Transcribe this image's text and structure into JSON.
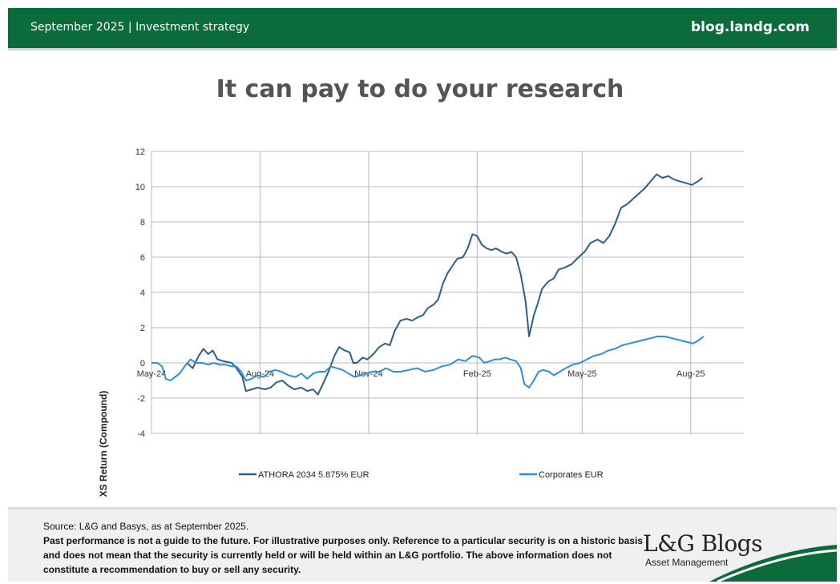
{
  "header": {
    "left_text": "September 2025 | Investment strategy",
    "right_text": "blog.landg.com",
    "color": "#0b6b3a"
  },
  "title": "It can pay to do your research",
  "footer": {
    "source": "Source: L&G and Basys, as at September 2025.",
    "disclaimer": "Past performance is not a guide to the future. For illustrative purposes only. Reference to a particular security is on a historic basis and does not mean that the security is currently held or will be held within an L&G portfolio. The above information does not constitute a recommendation to buy or sell any security.",
    "brand": "L&G Blogs",
    "brand_sub": "Asset Management"
  },
  "chart_data": {
    "type": "line",
    "title": "",
    "xlabel": "",
    "ylabel": "XS Return (Compound)",
    "ylim": [
      -4,
      12
    ],
    "yticks": [
      -4,
      -2,
      0,
      2,
      4,
      6,
      8,
      10,
      12
    ],
    "xlim": [
      "2024-05-01",
      "2025-09-15"
    ],
    "xticks": [
      {
        "date": "2024-05-01",
        "label": "May-24"
      },
      {
        "date": "2024-08-01",
        "label": "Aug-24"
      },
      {
        "date": "2024-11-01",
        "label": "Nov-24"
      },
      {
        "date": "2025-02-01",
        "label": "Feb-25"
      },
      {
        "date": "2025-05-01",
        "label": "May-25"
      },
      {
        "date": "2025-08-01",
        "label": "Aug-25"
      }
    ],
    "grid": true,
    "legend_position": "bottom",
    "series": [
      {
        "name": "ATHORA 2034 5.875%  EUR",
        "color": "#2e5f86",
        "points": [
          [
            "2024-05-31",
            0.0
          ],
          [
            "2024-06-05",
            -0.3
          ],
          [
            "2024-06-10",
            0.4
          ],
          [
            "2024-06-14",
            0.8
          ],
          [
            "2024-06-18",
            0.5
          ],
          [
            "2024-06-22",
            0.7
          ],
          [
            "2024-06-26",
            0.2
          ],
          [
            "2024-07-01",
            0.1
          ],
          [
            "2024-07-08",
            0.0
          ],
          [
            "2024-07-12",
            -0.3
          ],
          [
            "2024-07-17",
            -0.8
          ],
          [
            "2024-07-20",
            -1.6
          ],
          [
            "2024-07-25",
            -1.5
          ],
          [
            "2024-07-30",
            -1.4
          ],
          [
            "2024-08-05",
            -1.5
          ],
          [
            "2024-08-10",
            -1.4
          ],
          [
            "2024-08-15",
            -1.1
          ],
          [
            "2024-08-20",
            -1.0
          ],
          [
            "2024-08-25",
            -1.3
          ],
          [
            "2024-08-30",
            -1.5
          ],
          [
            "2024-09-05",
            -1.4
          ],
          [
            "2024-09-10",
            -1.6
          ],
          [
            "2024-09-15",
            -1.5
          ],
          [
            "2024-09-19",
            -1.8
          ],
          [
            "2024-09-24",
            -1.1
          ],
          [
            "2024-09-28",
            -0.5
          ],
          [
            "2024-10-03",
            0.4
          ],
          [
            "2024-10-07",
            0.9
          ],
          [
            "2024-10-12",
            0.7
          ],
          [
            "2024-10-16",
            0.6
          ],
          [
            "2024-10-19",
            0.0
          ],
          [
            "2024-10-22",
            0.0
          ],
          [
            "2024-10-27",
            0.3
          ],
          [
            "2024-10-31",
            0.2
          ],
          [
            "2024-11-05",
            0.5
          ],
          [
            "2024-11-10",
            0.9
          ],
          [
            "2024-11-15",
            1.1
          ],
          [
            "2024-11-19",
            1.0
          ],
          [
            "2024-11-23",
            1.8
          ],
          [
            "2024-11-28",
            2.4
          ],
          [
            "2024-12-03",
            2.5
          ],
          [
            "2024-12-08",
            2.4
          ],
          [
            "2024-12-13",
            2.6
          ],
          [
            "2024-12-17",
            2.7
          ],
          [
            "2024-12-21",
            3.1
          ],
          [
            "2024-12-26",
            3.3
          ],
          [
            "2024-12-30",
            3.6
          ],
          [
            "2025-01-03",
            4.5
          ],
          [
            "2025-01-07",
            5.1
          ],
          [
            "2025-01-11",
            5.5
          ],
          [
            "2025-01-15",
            5.9
          ],
          [
            "2025-01-20",
            6.0
          ],
          [
            "2025-01-24",
            6.5
          ],
          [
            "2025-01-28",
            7.3
          ],
          [
            "2025-02-01",
            7.2
          ],
          [
            "2025-02-05",
            6.7
          ],
          [
            "2025-02-09",
            6.5
          ],
          [
            "2025-02-13",
            6.4
          ],
          [
            "2025-02-17",
            6.5
          ],
          [
            "2025-02-22",
            6.3
          ],
          [
            "2025-02-26",
            6.2
          ],
          [
            "2025-03-02",
            6.3
          ],
          [
            "2025-03-06",
            6.0
          ],
          [
            "2025-03-10",
            5.0
          ],
          [
            "2025-03-14",
            3.5
          ],
          [
            "2025-03-17",
            1.5
          ],
          [
            "2025-03-21",
            2.7
          ],
          [
            "2025-03-24",
            3.3
          ],
          [
            "2025-03-28",
            4.2
          ],
          [
            "2025-04-02",
            4.6
          ],
          [
            "2025-04-07",
            4.8
          ],
          [
            "2025-04-11",
            5.3
          ],
          [
            "2025-04-16",
            5.4
          ],
          [
            "2025-04-22",
            5.6
          ],
          [
            "2025-04-28",
            6.0
          ],
          [
            "2025-05-03",
            6.3
          ],
          [
            "2025-05-08",
            6.8
          ],
          [
            "2025-05-14",
            7.0
          ],
          [
            "2025-05-19",
            6.8
          ],
          [
            "2025-05-24",
            7.2
          ],
          [
            "2025-05-29",
            7.9
          ],
          [
            "2025-06-03",
            8.8
          ],
          [
            "2025-06-08",
            9.0
          ],
          [
            "2025-06-13",
            9.3
          ],
          [
            "2025-06-18",
            9.6
          ],
          [
            "2025-06-23",
            9.9
          ],
          [
            "2025-06-28",
            10.3
          ],
          [
            "2025-07-03",
            10.7
          ],
          [
            "2025-07-08",
            10.5
          ],
          [
            "2025-07-13",
            10.6
          ],
          [
            "2025-07-18",
            10.4
          ],
          [
            "2025-07-23",
            10.3
          ],
          [
            "2025-07-28",
            10.2
          ],
          [
            "2025-08-02",
            10.1
          ],
          [
            "2025-08-07",
            10.3
          ],
          [
            "2025-08-11",
            10.5
          ]
        ]
      },
      {
        "name": "Corporates EUR",
        "color": "#2f8fd4",
        "points": [
          [
            "2024-05-01",
            0.0
          ],
          [
            "2024-05-06",
            0.0
          ],
          [
            "2024-05-10",
            -0.2
          ],
          [
            "2024-05-13",
            -0.9
          ],
          [
            "2024-05-17",
            -1.0
          ],
          [
            "2024-05-21",
            -0.8
          ],
          [
            "2024-05-25",
            -0.6
          ],
          [
            "2024-05-29",
            -0.2
          ],
          [
            "2024-06-03",
            0.2
          ],
          [
            "2024-06-08",
            0.0
          ],
          [
            "2024-06-13",
            0.0
          ],
          [
            "2024-06-18",
            -0.1
          ],
          [
            "2024-06-23",
            0.0
          ],
          [
            "2024-06-28",
            -0.1
          ],
          [
            "2024-07-03",
            -0.1
          ],
          [
            "2024-07-08",
            -0.2
          ],
          [
            "2024-07-12",
            -0.2
          ],
          [
            "2024-07-16",
            -0.5
          ],
          [
            "2024-07-20",
            -1.0
          ],
          [
            "2024-07-25",
            -0.9
          ],
          [
            "2024-07-30",
            -0.7
          ],
          [
            "2024-08-04",
            -0.8
          ],
          [
            "2024-08-09",
            -0.5
          ],
          [
            "2024-08-14",
            -0.4
          ],
          [
            "2024-08-19",
            -0.5
          ],
          [
            "2024-08-25",
            -0.7
          ],
          [
            "2024-08-31",
            -0.8
          ],
          [
            "2024-09-05",
            -0.6
          ],
          [
            "2024-09-10",
            -0.9
          ],
          [
            "2024-09-15",
            -0.6
          ],
          [
            "2024-09-20",
            -0.5
          ],
          [
            "2024-09-25",
            -0.5
          ],
          [
            "2024-09-30",
            -0.2
          ],
          [
            "2024-10-05",
            -0.3
          ],
          [
            "2024-10-10",
            -0.4
          ],
          [
            "2024-10-15",
            -0.6
          ],
          [
            "2024-10-20",
            -0.8
          ],
          [
            "2024-10-25",
            -0.7
          ],
          [
            "2024-10-30",
            -0.6
          ],
          [
            "2024-11-04",
            -0.5
          ],
          [
            "2024-11-10",
            -0.5
          ],
          [
            "2024-11-16",
            -0.3
          ],
          [
            "2024-11-22",
            -0.5
          ],
          [
            "2024-11-28",
            -0.5
          ],
          [
            "2024-12-05",
            -0.4
          ],
          [
            "2024-12-12",
            -0.3
          ],
          [
            "2024-12-19",
            -0.5
          ],
          [
            "2024-12-26",
            -0.4
          ],
          [
            "2025-01-02",
            -0.2
          ],
          [
            "2025-01-09",
            -0.1
          ],
          [
            "2025-01-16",
            0.2
          ],
          [
            "2025-01-22",
            0.1
          ],
          [
            "2025-01-28",
            0.4
          ],
          [
            "2025-02-03",
            0.3
          ],
          [
            "2025-02-07",
            0.0
          ],
          [
            "2025-02-12",
            0.1
          ],
          [
            "2025-02-16",
            0.2
          ],
          [
            "2025-02-20",
            0.2
          ],
          [
            "2025-02-25",
            0.3
          ],
          [
            "2025-03-01",
            0.2
          ],
          [
            "2025-03-06",
            0.1
          ],
          [
            "2025-03-10",
            -0.3
          ],
          [
            "2025-03-13",
            -1.2
          ],
          [
            "2025-03-17",
            -1.4
          ],
          [
            "2025-03-21",
            -1.0
          ],
          [
            "2025-03-25",
            -0.5
          ],
          [
            "2025-03-29",
            -0.4
          ],
          [
            "2025-04-03",
            -0.5
          ],
          [
            "2025-04-07",
            -0.7
          ],
          [
            "2025-04-12",
            -0.5
          ],
          [
            "2025-04-17",
            -0.3
          ],
          [
            "2025-04-23",
            -0.1
          ],
          [
            "2025-04-29",
            0.0
          ],
          [
            "2025-05-05",
            0.2
          ],
          [
            "2025-05-11",
            0.4
          ],
          [
            "2025-05-17",
            0.5
          ],
          [
            "2025-05-23",
            0.7
          ],
          [
            "2025-05-29",
            0.8
          ],
          [
            "2025-06-04",
            1.0
          ],
          [
            "2025-06-10",
            1.1
          ],
          [
            "2025-06-16",
            1.2
          ],
          [
            "2025-06-22",
            1.3
          ],
          [
            "2025-06-28",
            1.4
          ],
          [
            "2025-07-04",
            1.5
          ],
          [
            "2025-07-10",
            1.5
          ],
          [
            "2025-07-16",
            1.4
          ],
          [
            "2025-07-22",
            1.3
          ],
          [
            "2025-07-28",
            1.2
          ],
          [
            "2025-08-03",
            1.1
          ],
          [
            "2025-08-08",
            1.3
          ],
          [
            "2025-08-12",
            1.5
          ]
        ]
      }
    ]
  }
}
